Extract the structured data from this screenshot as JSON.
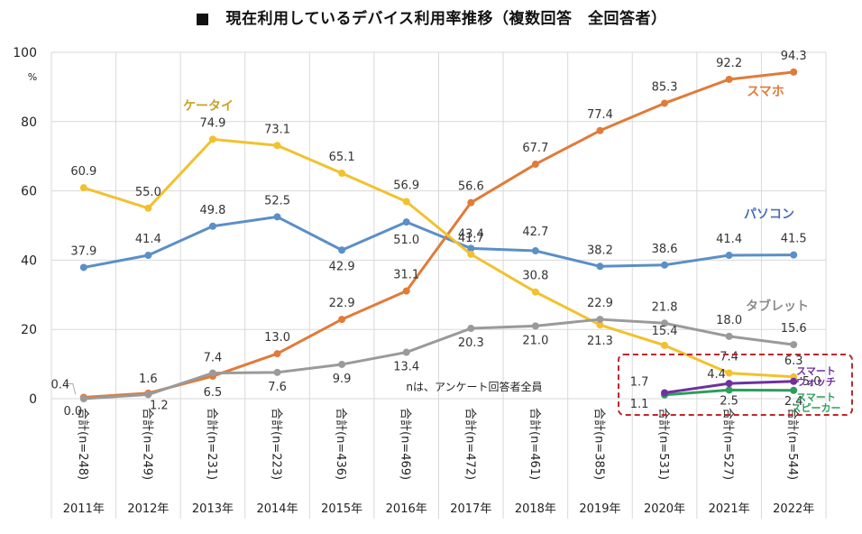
{
  "chart_data": {
    "type": "line",
    "title": "■　現在利用しているデバイス利用率推移（複数回答　全回答者）",
    "ylabel": "%",
    "ylim": [
      0,
      100
    ],
    "yticks": [
      0,
      20,
      40,
      60,
      80,
      100
    ],
    "grid": true,
    "categories": [
      "2011年",
      "2012年",
      "2013年",
      "2014年",
      "2015年",
      "2016年",
      "2017年",
      "2018年",
      "2019年",
      "2020年",
      "2021年",
      "2022年"
    ],
    "category_n_labels": [
      "合計(n=248)",
      "合計(n=249)",
      "合計(n=231)",
      "合計(n=223)",
      "合計(n=436)",
      "合計(n=469)",
      "合計(n=472)",
      "合計(n=461)",
      "合計(n=385)",
      "合計(n=531)",
      "合計(n=527)",
      "合計(n=544)"
    ],
    "note": "nは、アンケート回答者全員",
    "series": [
      {
        "name": "スマホ",
        "color": "#E07B39",
        "values": [
          0.4,
          1.6,
          6.5,
          13.0,
          22.9,
          31.1,
          56.6,
          67.7,
          77.4,
          85.3,
          92.2,
          94.3
        ],
        "labels": [
          "0.4",
          "1.6",
          "6.5",
          "13.0",
          "22.9",
          "31.1",
          "56.6",
          "67.7",
          "77.4",
          "85.3",
          "92.2",
          "94.3"
        ]
      },
      {
        "name": "ケータイ",
        "color": "#F2C12E",
        "label_color": "#C9A227",
        "values": [
          60.9,
          55.0,
          74.9,
          73.1,
          65.1,
          56.9,
          41.7,
          30.8,
          21.3,
          15.4,
          7.4,
          6.3
        ],
        "labels": [
          "60.9",
          "55.0",
          "74.9",
          "73.1",
          "65.1",
          "56.9",
          "41.7",
          "30.8",
          "21.3",
          "15.4",
          "7.4",
          "6.3"
        ]
      },
      {
        "name": "パソコン",
        "color": "#5B8FC7",
        "label_color": "#4A6FB5",
        "values": [
          37.9,
          41.4,
          49.8,
          52.5,
          42.9,
          51.0,
          43.4,
          42.7,
          38.2,
          38.6,
          41.4,
          41.5
        ],
        "labels": [
          "37.9",
          "41.4",
          "49.8",
          "52.5",
          "42.9",
          "51.0",
          "43.4",
          "42.7",
          "38.2",
          "38.6",
          "41.4",
          "41.5"
        ]
      },
      {
        "name": "タブレット",
        "color": "#9A9A9A",
        "label_color": "#8C8C8C",
        "values": [
          0.0,
          1.2,
          7.4,
          7.6,
          9.9,
          13.4,
          20.3,
          21.0,
          22.9,
          21.8,
          18.0,
          15.6
        ],
        "labels": [
          "0.0",
          "1.2",
          "7.4",
          "7.6",
          "9.9",
          "13.4",
          "20.3",
          "21.0",
          "22.9",
          "21.8",
          "18.0",
          "15.6"
        ]
      },
      {
        "name": "スマートウォッチ",
        "name_lines": [
          "スマート",
          "ウォッチ"
        ],
        "color": "#7030A0",
        "values": [
          null,
          null,
          null,
          null,
          null,
          null,
          null,
          null,
          null,
          1.7,
          4.4,
          5.0
        ],
        "labels": [
          null,
          null,
          null,
          null,
          null,
          null,
          null,
          null,
          null,
          "1.7",
          "4.4",
          "5.0"
        ]
      },
      {
        "name": "スマートスピーカー",
        "name_lines": [
          "スマート",
          "スピーカー"
        ],
        "color": "#2E9E5B",
        "values": [
          null,
          null,
          null,
          null,
          null,
          null,
          null,
          null,
          null,
          1.1,
          2.5,
          2.4
        ],
        "labels": [
          null,
          null,
          null,
          null,
          null,
          null,
          null,
          null,
          null,
          "1.1",
          "2.5",
          "2.4"
        ]
      }
    ],
    "annotations": [
      {
        "type": "dashed-box",
        "color": "#C0282D",
        "covers": [
          "スマートウォッチ",
          "スマートスピーカー"
        ],
        "years": [
          "2020年",
          "2021年",
          "2022年"
        ]
      }
    ]
  }
}
